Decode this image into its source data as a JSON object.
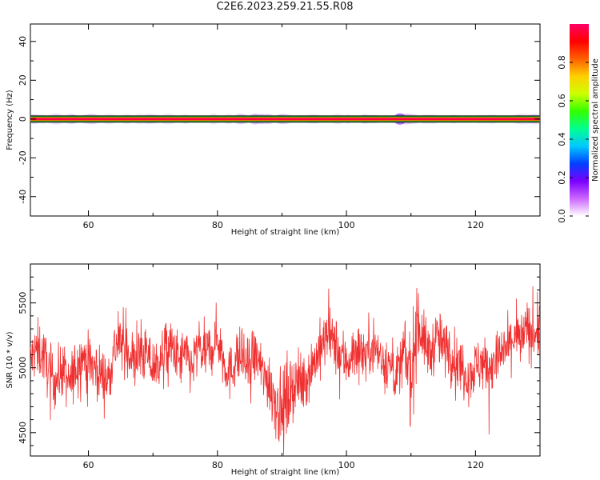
{
  "title": "C2E6.2023.259.21.55.R08",
  "chart_data": [
    {
      "type": "heatmap",
      "xlabel": "Height of straight line (km)",
      "ylabel": "Frequency (Hz)",
      "xlim": [
        51,
        130
      ],
      "ylim": [
        -50,
        49
      ],
      "x_ticks": [
        60,
        80,
        100,
        120
      ],
      "y_ticks": [
        -40,
        -20,
        0,
        20,
        40
      ],
      "ridge_frequency": 0,
      "colorbar": {
        "label": "Normalized spectral amplitude",
        "range": [
          0,
          1
        ],
        "ticks": [
          0.0,
          0.2,
          0.4,
          0.6,
          0.8
        ],
        "tick_labels": [
          "0.0",
          "0.2",
          "0.4",
          "0.6",
          "0.8"
        ],
        "colors": [
          "#ffffff",
          "#cc66ff",
          "#7a00ff",
          "#0040ff",
          "#00c8ff",
          "#00ff90",
          "#33ff00",
          "#ccff00",
          "#ffd000",
          "#ff6000",
          "#ff0000",
          "#ff0066"
        ]
      }
    },
    {
      "type": "line",
      "xlabel": "Height of straight line (km)",
      "ylabel": "SNR (10 * v/v)",
      "xlim": [
        51,
        130
      ],
      "ylim": [
        4320,
        5800
      ],
      "x_ticks": [
        60,
        80,
        100,
        120
      ],
      "y_ticks": [
        4500,
        5000,
        5500
      ],
      "color": "#f03030",
      "x": [
        51,
        52,
        53,
        54,
        55,
        56,
        57,
        58,
        59,
        60,
        61,
        62,
        63,
        64,
        65,
        66,
        67,
        68,
        69,
        70,
        71,
        72,
        73,
        74,
        75,
        76,
        77,
        78,
        79,
        80,
        81,
        82,
        83,
        84,
        85,
        86,
        87,
        88,
        89,
        90,
        91,
        92,
        93,
        94,
        95,
        96,
        97,
        98,
        99,
        100,
        101,
        102,
        103,
        104,
        105,
        106,
        107,
        108,
        109,
        110,
        111,
        112,
        113,
        114,
        115,
        116,
        117,
        118,
        119,
        120,
        121,
        122,
        123,
        124,
        125,
        126,
        127,
        128,
        129,
        130
      ],
      "y": [
        5050,
        5150,
        5100,
        4950,
        4900,
        5000,
        4850,
        5000,
        5100,
        5050,
        5000,
        4950,
        4900,
        5150,
        5200,
        5150,
        5050,
        5100,
        5100,
        5000,
        5050,
        5150,
        5150,
        5050,
        5100,
        5000,
        5150,
        5100,
        5150,
        5250,
        5050,
        4950,
        5100,
        5050,
        5000,
        5100,
        4950,
        4900,
        4750,
        4650,
        4800,
        4900,
        4850,
        4950,
        5050,
        5150,
        5250,
        5200,
        5100,
        5050,
        5100,
        5150,
        5100,
        5200,
        5100,
        5050,
        5000,
        4950,
        5100,
        4900,
        5400,
        5200,
        5100,
        5250,
        5150,
        5150,
        5050,
        5000,
        4950,
        5000,
        5050,
        5000,
        5050,
        5100,
        5150,
        5250,
        5200,
        5300,
        5250,
        5300
      ]
    }
  ]
}
